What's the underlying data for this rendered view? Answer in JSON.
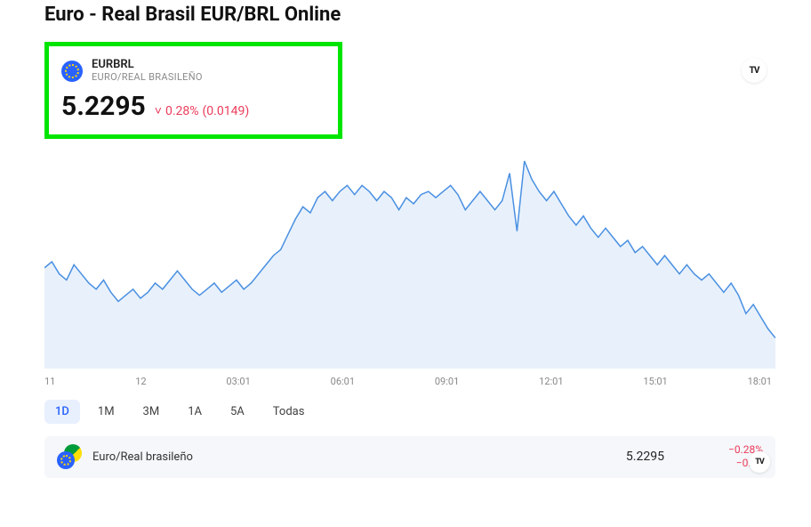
{
  "title": "Euro - Real Brasil EUR/BRL Online",
  "symbol": {
    "code": "EURBRL",
    "desc": "EURO/REAL BRASILEÑO"
  },
  "price": {
    "value": "5.2295",
    "change_pct": "0.28%",
    "change_abs": "(0.0149)",
    "change_prefix": "˅",
    "change_color": "#eb3b5a"
  },
  "logo_text": "TV",
  "chart": {
    "type": "area",
    "line_color": "#4a90e2",
    "fill_color": "#e8f1fb",
    "background_color": "#ffffff",
    "line_width": 1.5,
    "x_labels": [
      "11",
      "12",
      "03:01",
      "06:01",
      "09:01",
      "12:01",
      "15:01",
      "18:01"
    ],
    "y_range": [
      5.2,
      5.27
    ],
    "points": [
      5.233,
      5.235,
      5.231,
      5.229,
      5.234,
      5.231,
      5.228,
      5.226,
      5.229,
      5.225,
      5.222,
      5.224,
      5.226,
      5.223,
      5.225,
      5.228,
      5.226,
      5.229,
      5.232,
      5.229,
      5.226,
      5.224,
      5.226,
      5.228,
      5.225,
      5.227,
      5.229,
      5.226,
      5.228,
      5.231,
      5.234,
      5.237,
      5.239,
      5.244,
      5.249,
      5.253,
      5.251,
      5.256,
      5.258,
      5.255,
      5.258,
      5.26,
      5.257,
      5.26,
      5.258,
      5.255,
      5.258,
      5.256,
      5.252,
      5.256,
      5.254,
      5.257,
      5.258,
      5.256,
      5.258,
      5.26,
      5.257,
      5.252,
      5.255,
      5.258,
      5.255,
      5.252,
      5.255,
      5.264,
      5.245,
      5.268,
      5.262,
      5.258,
      5.255,
      5.258,
      5.254,
      5.25,
      5.247,
      5.25,
      5.246,
      5.243,
      5.246,
      5.243,
      5.24,
      5.242,
      5.238,
      5.24,
      5.237,
      5.234,
      5.237,
      5.234,
      5.231,
      5.234,
      5.231,
      5.229,
      5.231,
      5.228,
      5.225,
      5.228,
      5.224,
      5.218,
      5.221,
      5.217,
      5.213,
      5.21
    ]
  },
  "timeframes": {
    "options": [
      "1D",
      "1M",
      "3M",
      "1A",
      "5A",
      "Todas"
    ],
    "active_index": 0,
    "active_bg": "#e8f0fe",
    "active_color": "#2962ff"
  },
  "summary": {
    "name": "Euro/Real brasileño",
    "price": "5.2295",
    "change_pct": "−0.28%",
    "change_abs": "−0.01",
    "change_color": "#eb3b5a"
  }
}
